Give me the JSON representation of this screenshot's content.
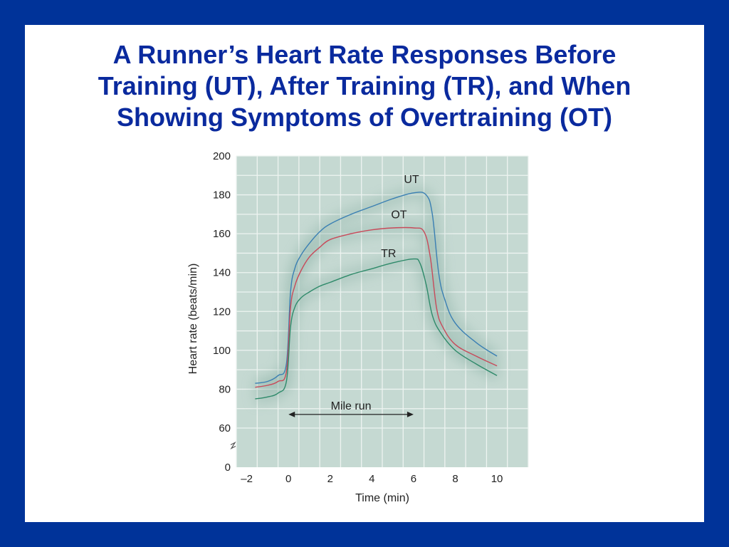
{
  "slide": {
    "title_lines": [
      "A Runner’s Heart Rate Responses Before",
      "Training (UT), After Training (TR), and When",
      "Showing Symptoms of Overtraining (OT)"
    ]
  },
  "colors": {
    "background": "#003399",
    "title": "#0a2a9e",
    "plot_bg": "#c5d9d2",
    "grid": "#eef4f1",
    "UT": "#3a7fb3",
    "OT": "#c84a5a",
    "TR": "#2e8a6a"
  },
  "chart_data": {
    "type": "line",
    "title": "",
    "xlabel": "Time (min)",
    "ylabel": "Heart rate (beats/min)",
    "xlim": [
      -2.5,
      11.5
    ],
    "ylim": [
      0,
      200
    ],
    "axis_break": "between 0 and 60",
    "x_ticks": [
      -2,
      0,
      2,
      4,
      6,
      8,
      10
    ],
    "x_tick_labels": [
      "–2",
      "0",
      "2",
      "4",
      "6",
      "8",
      "10"
    ],
    "y_ticks": [
      0,
      60,
      80,
      100,
      120,
      140,
      160,
      180,
      200
    ],
    "y_tick_labels": [
      "0",
      "60",
      "80",
      "100",
      "120",
      "140",
      "160",
      "180",
      "200"
    ],
    "grid": true,
    "annotation": {
      "text": "Mile run",
      "from": 0,
      "to": 6,
      "y": 67
    },
    "series": [
      {
        "name": "UT",
        "x": [
          -1.6,
          -1,
          -0.5,
          -0.1,
          0.1,
          0.3,
          0.6,
          1,
          1.5,
          2,
          3,
          4,
          5,
          6,
          6.6,
          6.9,
          7.2,
          7.5,
          8,
          9,
          10
        ],
        "y": [
          83,
          84,
          87,
          93,
          130,
          142,
          149,
          155,
          161,
          165,
          170,
          174,
          178,
          181,
          180,
          170,
          140,
          126,
          114,
          104,
          97
        ]
      },
      {
        "name": "OT",
        "x": [
          -1.6,
          -1,
          -0.5,
          -0.1,
          0.1,
          0.3,
          0.6,
          1,
          1.5,
          2,
          3,
          4,
          5,
          6,
          6.5,
          6.8,
          7.1,
          7.4,
          8,
          9,
          10
        ],
        "y": [
          81,
          82,
          84,
          89,
          122,
          133,
          141,
          148,
          153,
          157,
          160,
          162,
          163,
          163,
          161,
          148,
          122,
          112,
          103,
          97,
          92
        ]
      },
      {
        "name": "TR",
        "x": [
          -1.6,
          -1,
          -0.5,
          -0.1,
          0.1,
          0.3,
          0.6,
          1,
          1.5,
          2,
          3,
          4,
          5,
          6,
          6.3,
          6.6,
          6.9,
          7.3,
          8,
          9,
          10
        ],
        "y": [
          75,
          76,
          78,
          84,
          112,
          122,
          127,
          130,
          133,
          135,
          139,
          142,
          145,
          147,
          145,
          134,
          118,
          109,
          100,
          93,
          87
        ]
      }
    ],
    "series_labels": [
      {
        "name": "UT",
        "x": 5.9,
        "y": 186
      },
      {
        "name": "OT",
        "x": 5.3,
        "y": 168
      },
      {
        "name": "TR",
        "x": 4.8,
        "y": 148
      }
    ]
  }
}
